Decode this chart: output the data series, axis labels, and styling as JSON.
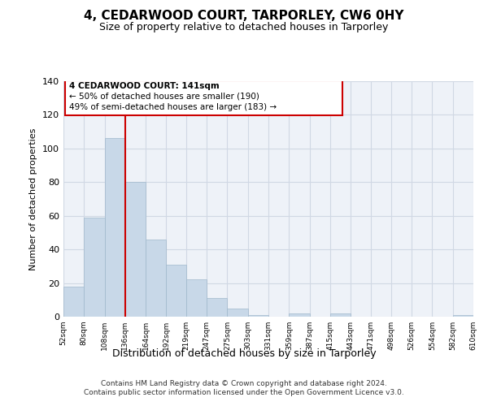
{
  "title": "4, CEDARWOOD COURT, TARPORLEY, CW6 0HY",
  "subtitle": "Size of property relative to detached houses in Tarporley",
  "xlabel": "Distribution of detached houses by size in Tarporley",
  "ylabel": "Number of detached properties",
  "bar_values": [
    18,
    59,
    106,
    80,
    46,
    31,
    22,
    11,
    5,
    1,
    0,
    2,
    0,
    2,
    0,
    0,
    0,
    0,
    0,
    1
  ],
  "bin_labels": [
    "52sqm",
    "80sqm",
    "108sqm",
    "136sqm",
    "164sqm",
    "192sqm",
    "219sqm",
    "247sqm",
    "275sqm",
    "303sqm",
    "331sqm",
    "359sqm",
    "387sqm",
    "415sqm",
    "443sqm",
    "471sqm",
    "498sqm",
    "526sqm",
    "554sqm",
    "582sqm",
    "610sqm"
  ],
  "bar_color": "#c8d8e8",
  "bar_edge_color": "#a0b8cc",
  "grid_color": "#d0d8e4",
  "bg_color": "#eef2f8",
  "vline_color": "#cc0000",
  "annotation_box_color": "#cc0000",
  "annotation_line1": "4 CEDARWOOD COURT: 141sqm",
  "annotation_line2": "← 50% of detached houses are smaller (190)",
  "annotation_line3": "49% of semi-detached houses are larger (183) →",
  "ylim": [
    0,
    140
  ],
  "yticks": [
    0,
    20,
    40,
    60,
    80,
    100,
    120,
    140
  ],
  "bin_edges": [
    52,
    80,
    108,
    136,
    164,
    192,
    219,
    247,
    275,
    303,
    331,
    359,
    387,
    415,
    443,
    471,
    498,
    526,
    554,
    582,
    610
  ],
  "footer_line1": "Contains HM Land Registry data © Crown copyright and database right 2024.",
  "footer_line2": "Contains public sector information licensed under the Open Government Licence v3.0."
}
